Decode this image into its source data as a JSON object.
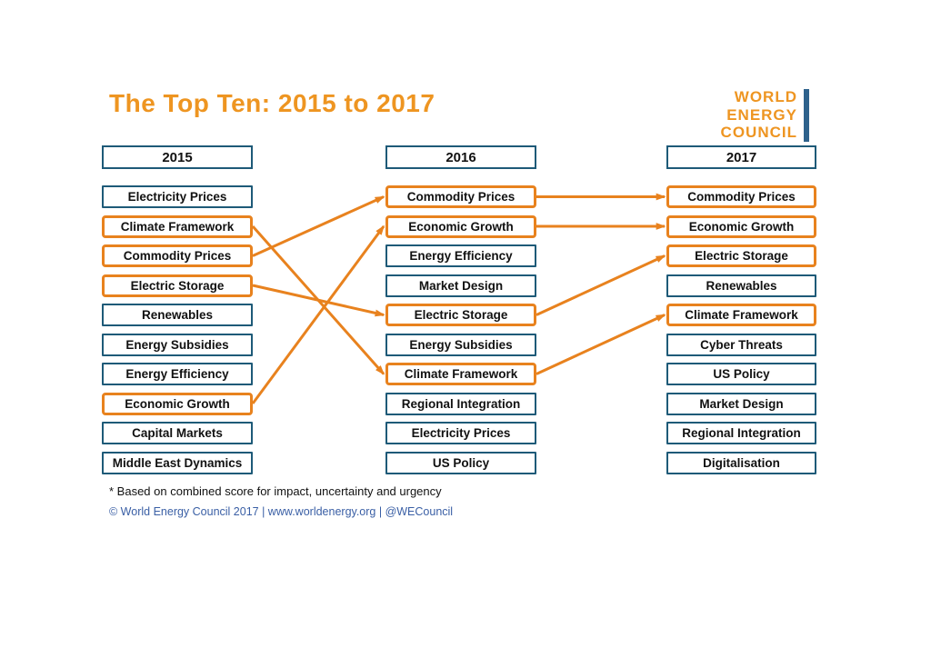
{
  "title": "The Top Ten: 2015 to 2017",
  "logo": {
    "lines": [
      "WORLD",
      "ENERGY",
      "COUNCIL"
    ]
  },
  "footnote": "* Based on combined score for impact, uncertainty and urgency",
  "copyright": "© World Energy Council 2017  |  www.worldenergy.org  |  @WECouncil",
  "colors": {
    "orange": "#E8821E",
    "title_orange": "#EE9521",
    "teal": "#1E5A78",
    "logo_bar_blue": "#2E628C",
    "footer_blue": "#3A5FA5"
  },
  "columns": [
    {
      "year": "2015",
      "items": [
        {
          "label": "Electricity Prices",
          "highlight": false
        },
        {
          "label": "Climate Framework",
          "highlight": true
        },
        {
          "label": "Commodity Prices",
          "highlight": true
        },
        {
          "label": "Electric Storage",
          "highlight": true
        },
        {
          "label": "Renewables",
          "highlight": false
        },
        {
          "label": "Energy Subsidies",
          "highlight": false
        },
        {
          "label": "Energy Efficiency",
          "highlight": false
        },
        {
          "label": "Economic Growth",
          "highlight": true
        },
        {
          "label": "Capital Markets",
          "highlight": false
        },
        {
          "label": "Middle East Dynamics",
          "highlight": false
        }
      ]
    },
    {
      "year": "2016",
      "items": [
        {
          "label": "Commodity Prices",
          "highlight": true
        },
        {
          "label": "Economic Growth",
          "highlight": true
        },
        {
          "label": "Energy Efficiency",
          "highlight": false
        },
        {
          "label": "Market Design",
          "highlight": false
        },
        {
          "label": "Electric Storage",
          "highlight": true
        },
        {
          "label": "Energy Subsidies",
          "highlight": false
        },
        {
          "label": "Climate Framework",
          "highlight": true
        },
        {
          "label": "Regional Integration",
          "highlight": false
        },
        {
          "label": "Electricity Prices",
          "highlight": false
        },
        {
          "label": "US Policy",
          "highlight": false
        }
      ]
    },
    {
      "year": "2017",
      "items": [
        {
          "label": "Commodity Prices",
          "highlight": true
        },
        {
          "label": "Economic Growth",
          "highlight": true
        },
        {
          "label": "Electric Storage",
          "highlight": true
        },
        {
          "label": "Renewables",
          "highlight": false
        },
        {
          "label": "Climate Framework",
          "highlight": true
        },
        {
          "label": "Cyber Threats",
          "highlight": false
        },
        {
          "label": "US Policy",
          "highlight": false
        },
        {
          "label": "Market Design",
          "highlight": false
        },
        {
          "label": "Regional Integration",
          "highlight": false
        },
        {
          "label": "Digitalisation",
          "highlight": false
        }
      ]
    }
  ],
  "connections": [
    {
      "from_year": "2015",
      "label": "Climate Framework",
      "to_year": "2016"
    },
    {
      "from_year": "2015",
      "label": "Commodity Prices",
      "to_year": "2016"
    },
    {
      "from_year": "2015",
      "label": "Electric Storage",
      "to_year": "2016"
    },
    {
      "from_year": "2015",
      "label": "Economic Growth",
      "to_year": "2016"
    },
    {
      "from_year": "2016",
      "label": "Commodity Prices",
      "to_year": "2017"
    },
    {
      "from_year": "2016",
      "label": "Economic Growth",
      "to_year": "2017"
    },
    {
      "from_year": "2016",
      "label": "Electric Storage",
      "to_year": "2017"
    },
    {
      "from_year": "2016",
      "label": "Climate Framework",
      "to_year": "2017"
    }
  ]
}
